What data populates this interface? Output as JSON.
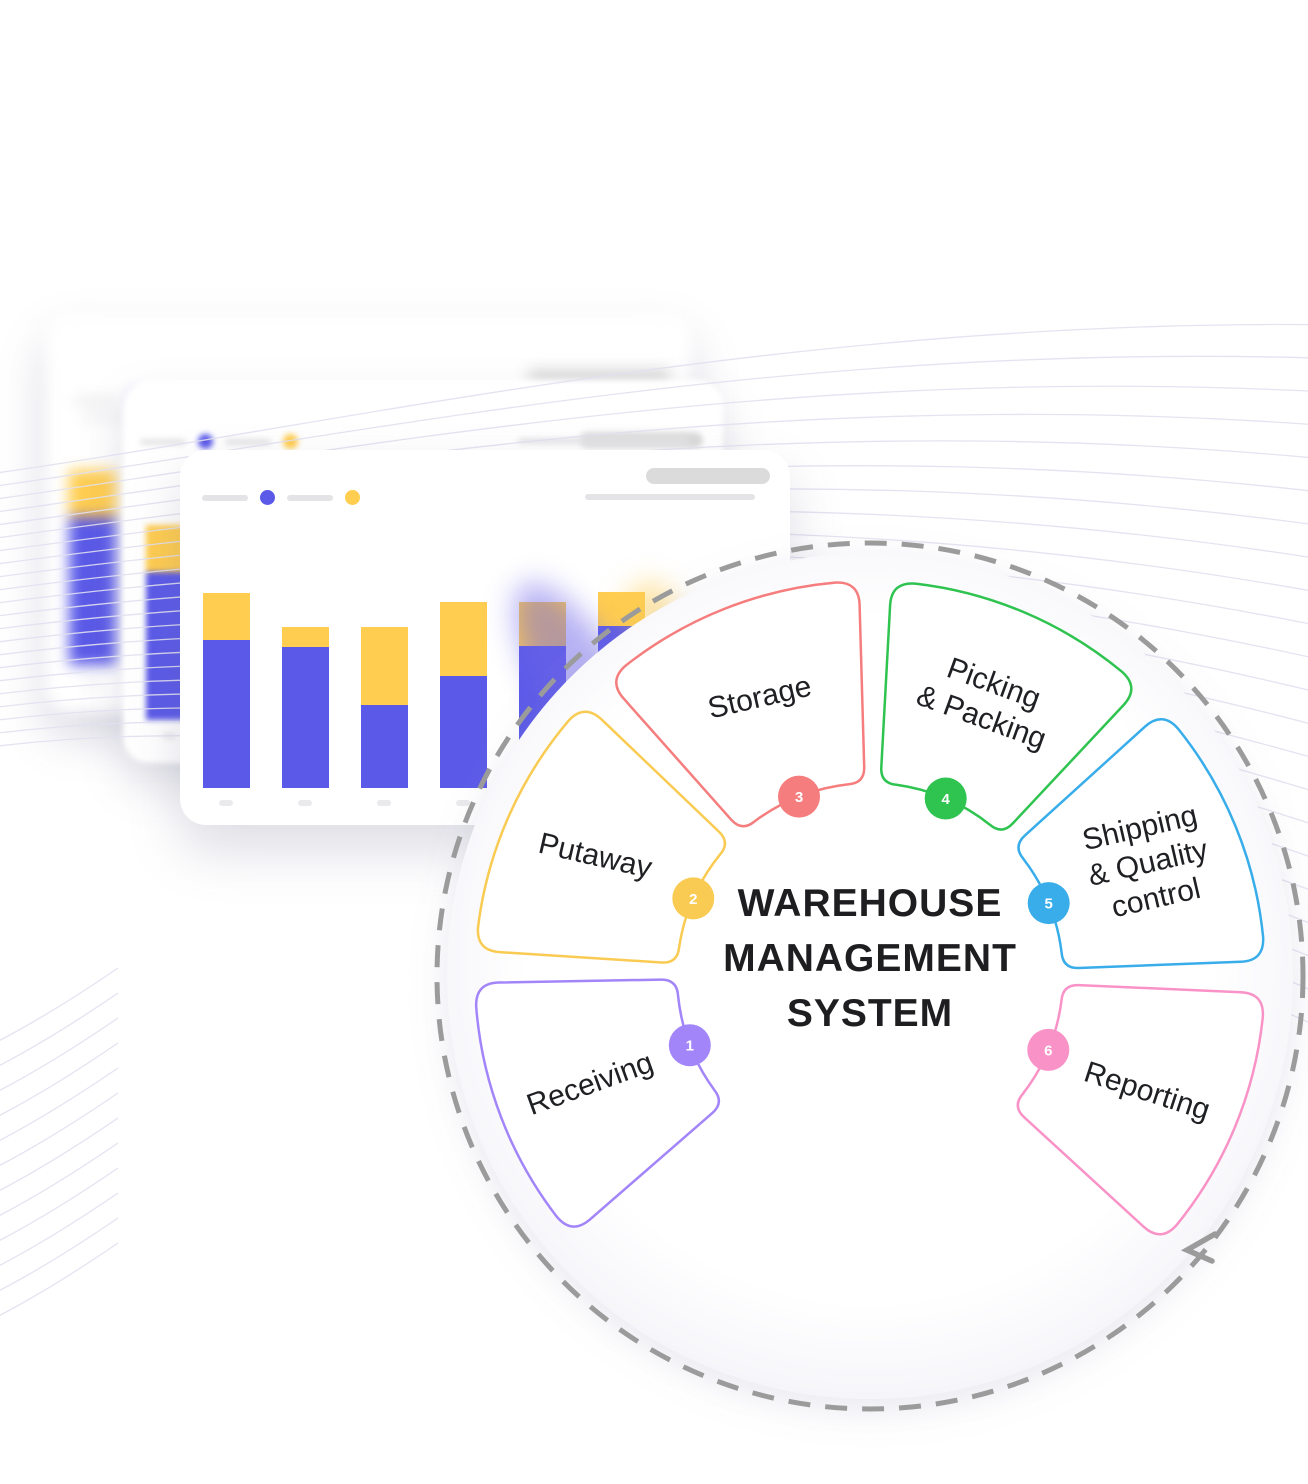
{
  "background": {
    "line_color": "#E1E0EF"
  },
  "cards": {
    "count": 3,
    "placeholder_pill_color": "#DBDBDB",
    "placeholder_line_color": "#E4E4E6",
    "tick_color": "#EAEAED",
    "legend_dot_colors": [
      "#5B5AE8",
      "#FFCD50"
    ]
  },
  "chart_data": {
    "type": "bar",
    "stacked": true,
    "num_bars": 6,
    "series": [
      {
        "name": "blue",
        "color": "#5B5AE8",
        "values": [
          148,
          141,
          83,
          112,
          142,
          162
        ]
      },
      {
        "name": "yellow",
        "color": "#FFCD50",
        "values": [
          47,
          20,
          78,
          74,
          44,
          34
        ]
      }
    ],
    "ylim": [
      0,
      200
    ],
    "units": "relative bar height in px (mockup chart, no axis labels visible)",
    "x_tick_labels": [
      "",
      "",
      "",
      "",
      "",
      ""
    ],
    "legend_position": "top-left",
    "grid": false
  },
  "wheel": {
    "title_lines": [
      "WAREHOUSE",
      "MANAGEMENT",
      "SYSTEM"
    ],
    "title_color": "#1E1E21",
    "label_color": "#1F2023",
    "badge_text_color": "#FFFFFF",
    "ring_color": "#9B9B9B",
    "segments": [
      {
        "num": "1",
        "label_lines": [
          "Receiving"
        ],
        "color": "#A385FA",
        "angle": 249.0,
        "rotation": -20
      },
      {
        "num": "2",
        "label_lines": [
          "Putaway"
        ],
        "color": "#F9CB52",
        "angle": 293.7,
        "rotation": 13
      },
      {
        "num": "3",
        "label_lines": [
          "Storage"
        ],
        "color": "#F57D7D",
        "angle": 338.4,
        "rotation": -13
      },
      {
        "num": "4",
        "label_lines": [
          "Picking",
          "& Packing"
        ],
        "color": "#2FC350",
        "angle": 23.1,
        "rotation": 20
      },
      {
        "num": "5",
        "label_lines": [
          "Shipping",
          "& Quality",
          "control"
        ],
        "color": "#38ADEA",
        "angle": 67.8,
        "rotation": -13
      },
      {
        "num": "6",
        "label_lines": [
          "Reporting"
        ],
        "color": "#F992C7",
        "angle": 112.5,
        "rotation": 18
      }
    ]
  }
}
